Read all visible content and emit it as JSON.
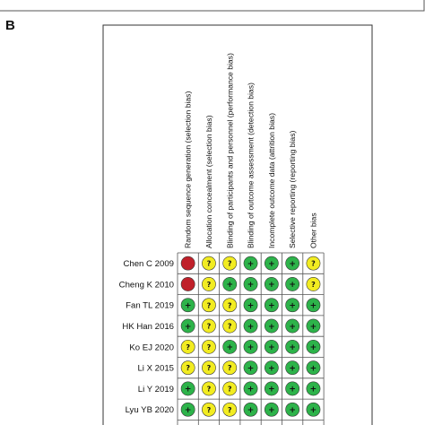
{
  "panel_label": "B",
  "domains": [
    "Random sequence generation (selection bias)",
    "Allocation concealment (selection bias)",
    "Blinding of participants and personnel (performance bias)",
    "Blinding of outcome assessment (detection bias)",
    "Incomplete outcome data (attrition bias)",
    "Selective reporting (reporting bias)",
    "Other bias"
  ],
  "studies": [
    {
      "name": "Chen C 2009",
      "judgements": [
        "high",
        "unclear",
        "unclear",
        "low",
        "low",
        "low",
        "unclear"
      ]
    },
    {
      "name": "Cheng K 2010",
      "judgements": [
        "high",
        "unclear",
        "low",
        "low",
        "low",
        "low",
        "unclear"
      ]
    },
    {
      "name": "Fan TL 2019",
      "judgements": [
        "low",
        "unclear",
        "unclear",
        "low",
        "low",
        "low",
        "low"
      ]
    },
    {
      "name": "HK Han 2016",
      "judgements": [
        "low",
        "unclear",
        "unclear",
        "low",
        "low",
        "low",
        "low"
      ]
    },
    {
      "name": "Ko EJ 2020",
      "judgements": [
        "unclear",
        "unclear",
        "low",
        "low",
        "low",
        "low",
        "low"
      ]
    },
    {
      "name": "Li X 2015",
      "judgements": [
        "unclear",
        "unclear",
        "unclear",
        "low",
        "low",
        "low",
        "low"
      ]
    },
    {
      "name": "Li Y 2019",
      "judgements": [
        "low",
        "unclear",
        "unclear",
        "low",
        "low",
        "low",
        "low"
      ]
    },
    {
      "name": "Lyu YB 2020",
      "judgements": [
        "low",
        "unclear",
        "unclear",
        "low",
        "low",
        "low",
        "low"
      ]
    }
  ],
  "legend": {
    "low": {
      "symbol": "+",
      "color": "#2db34a"
    },
    "unclear": {
      "symbol": "?",
      "color": "#f2ec21"
    },
    "high": {
      "symbol": "",
      "color": "#c0202a"
    }
  }
}
